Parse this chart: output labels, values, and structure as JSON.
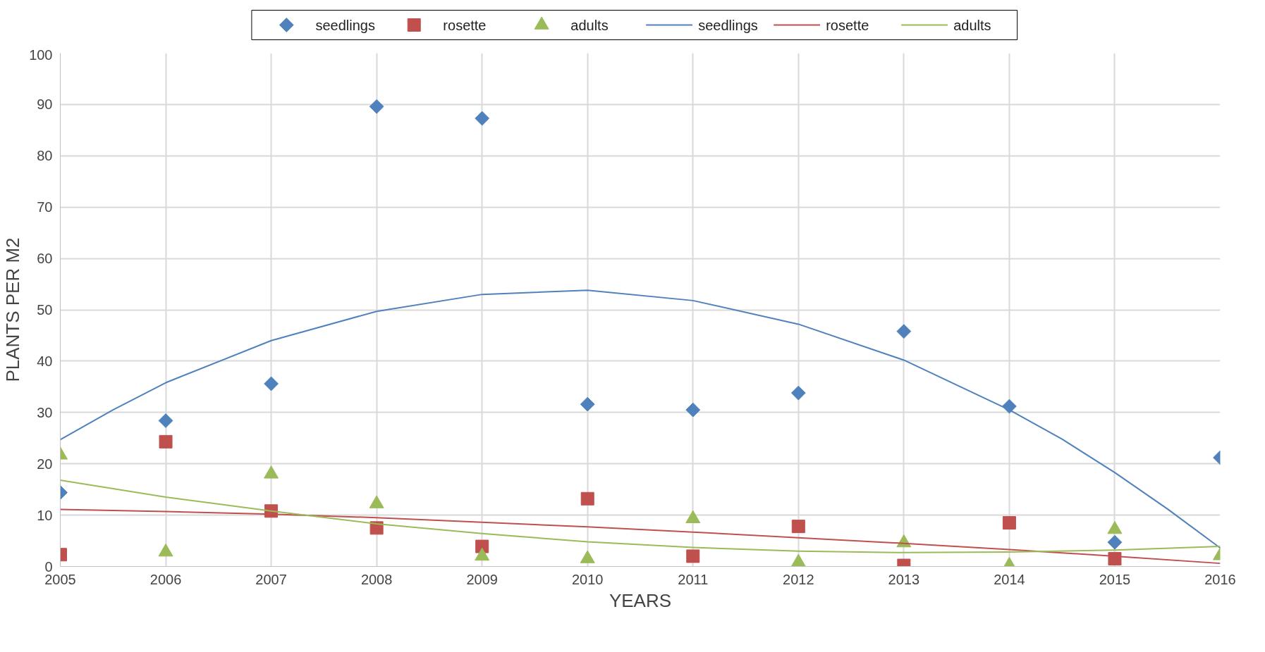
{
  "chart_data": {
    "type": "scatter",
    "xlabel": "YEARS",
    "ylabel": "PLANTS PER M2",
    "x": [
      2005,
      2006,
      2007,
      2008,
      2009,
      2010,
      2011,
      2012,
      2013,
      2014,
      2015,
      2016
    ],
    "xlim": [
      2005,
      2016
    ],
    "xticks": [
      2005,
      2006,
      2007,
      2008,
      2009,
      2010,
      2011,
      2012,
      2013,
      2014,
      2015,
      2016
    ],
    "ylim": [
      0,
      100
    ],
    "yticks": [
      0,
      10,
      20,
      30,
      40,
      50,
      60,
      70,
      80,
      90,
      100
    ],
    "grid": true,
    "legend": "top",
    "series": [
      {
        "name": "seedlings",
        "marker": "diamond",
        "color": "#4f81bd",
        "values": [
          14.4,
          28.4,
          35.6,
          89.6,
          87.3,
          31.6,
          30.5,
          33.8,
          45.8,
          31.2,
          4.7,
          21.2
        ]
      },
      {
        "name": "rosette",
        "marker": "square",
        "color": "#c0504d",
        "values": [
          2.3,
          24.3,
          10.8,
          7.5,
          3.9,
          13.2,
          2.0,
          7.8,
          0.2,
          8.5,
          1.5,
          null
        ]
      },
      {
        "name": "adults",
        "marker": "triangle",
        "color": "#9bbb59",
        "values": [
          21.7,
          2.8,
          18,
          12.2,
          2,
          1.5,
          9.3,
          0.8,
          4.6,
          0.2,
          7.2,
          2.1
        ]
      },
      {
        "name": "seedlings",
        "type": "line",
        "color": "#4f81bd",
        "x": [
          2005,
          2005.5,
          2006,
          2007,
          2008,
          2009,
          2010,
          2011,
          2012,
          2013,
          2014,
          2014.5,
          2015,
          2015.5,
          2016
        ],
        "values": [
          24.7,
          30.5,
          35.8,
          44,
          49.7,
          53,
          53.8,
          51.8,
          47.2,
          40.2,
          30.5,
          24.8,
          18.3,
          11.2,
          3.6
        ]
      },
      {
        "name": "rosette",
        "type": "line",
        "color": "#c0504d",
        "x": [
          2005,
          2006,
          2007,
          2008,
          2009,
          2010,
          2011,
          2012,
          2013,
          2014,
          2015,
          2016
        ],
        "values": [
          11.1,
          10.7,
          10.2,
          9.5,
          8.6,
          7.7,
          6.7,
          5.6,
          4.5,
          3.3,
          2.0,
          0.6
        ]
      },
      {
        "name": "adults",
        "type": "line",
        "color": "#9bbb59",
        "x": [
          2005,
          2006,
          2007,
          2008,
          2009,
          2010,
          2011,
          2012,
          2013,
          2014,
          2015,
          2016
        ],
        "values": [
          16.8,
          13.5,
          10.8,
          8.3,
          6.4,
          4.8,
          3.7,
          3.0,
          2.7,
          2.8,
          3.2,
          3.9
        ]
      }
    ]
  }
}
